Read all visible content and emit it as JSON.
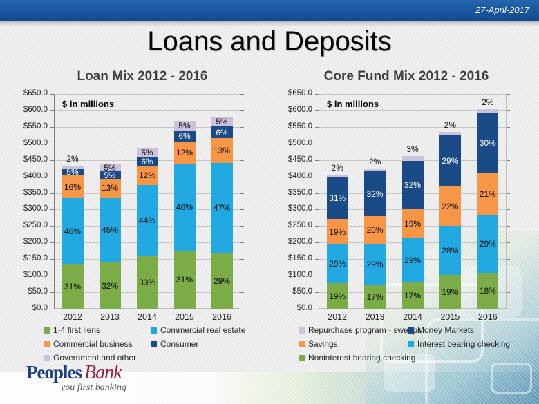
{
  "header": {
    "date": "27-April-2017",
    "title": "Loans and Deposits"
  },
  "chart_data": [
    {
      "type": "bar",
      "subtype": "stacked-percent",
      "title": "Loan Mix 2012 - 2016",
      "annotation": "$ in millions",
      "categories": [
        "2012",
        "2013",
        "2014",
        "2015",
        "2016"
      ],
      "bar_totals_millions": [
        433,
        437,
        485,
        568,
        580
      ],
      "ylim": [
        0,
        650
      ],
      "ytick_step": 50,
      "ytick_prefix": "$",
      "grid": true,
      "legend_position": "bottom",
      "series": [
        {
          "name": "1-4 first liens",
          "color": "#7BAC47",
          "values_pct": [
            31,
            32,
            33,
            31,
            29
          ]
        },
        {
          "name": "Commercial real estate",
          "color": "#23A9E1",
          "values_pct": [
            46,
            45,
            44,
            46,
            47
          ]
        },
        {
          "name": "Commercial business",
          "color": "#F79646",
          "values_pct": [
            16,
            13,
            12,
            12,
            13
          ]
        },
        {
          "name": "Consumer",
          "color": "#1A4B87",
          "label_color": "#FFFFFF",
          "values_pct": [
            5,
            5,
            6,
            6,
            6
          ]
        },
        {
          "name": "Government and other",
          "color": "#CCC2DB",
          "values_pct": [
            2,
            5,
            5,
            5,
            5
          ]
        }
      ],
      "legend_order": [
        0,
        1,
        2,
        3,
        4
      ]
    },
    {
      "type": "bar",
      "subtype": "stacked-percent",
      "title": "Core Fund Mix 2012 - 2016",
      "annotation": "$ in millions",
      "categories": [
        "2012",
        "2013",
        "2014",
        "2015",
        "2016"
      ],
      "bar_totals_millions": [
        405,
        424,
        462,
        535,
        604
      ],
      "ylim": [
        0,
        650
      ],
      "ytick_step": 50,
      "ytick_prefix": "$",
      "grid": true,
      "legend_position": "bottom",
      "series": [
        {
          "name": "Noninterest bearing checking",
          "color": "#7BAC47",
          "values_pct": [
            19,
            17,
            17,
            19,
            18
          ]
        },
        {
          "name": "Interest bearing checking",
          "color": "#23A9E1",
          "values_pct": [
            29,
            29,
            29,
            28,
            29
          ]
        },
        {
          "name": "Savings",
          "color": "#F79646",
          "values_pct": [
            19,
            20,
            19,
            22,
            21
          ]
        },
        {
          "name": "Money Markets",
          "color": "#1A4B87",
          "label_color": "#FFFFFF",
          "values_pct": [
            31,
            32,
            32,
            29,
            30
          ]
        },
        {
          "name": "Repurchase program - sweeps",
          "color": "#CCC2DB",
          "values_pct": [
            2,
            2,
            3,
            2,
            2
          ]
        }
      ],
      "legend_order": [
        4,
        3,
        2,
        1,
        0
      ]
    }
  ],
  "footer": {
    "logo": {
      "name_part1": "Peoples",
      "name_part2": "Bank",
      "tagline": "you first banking"
    }
  },
  "colors": {
    "banner": "#1A57A0",
    "background": "#ECECEC",
    "grid": "#C6C6C6",
    "axis_text": "#262626"
  }
}
